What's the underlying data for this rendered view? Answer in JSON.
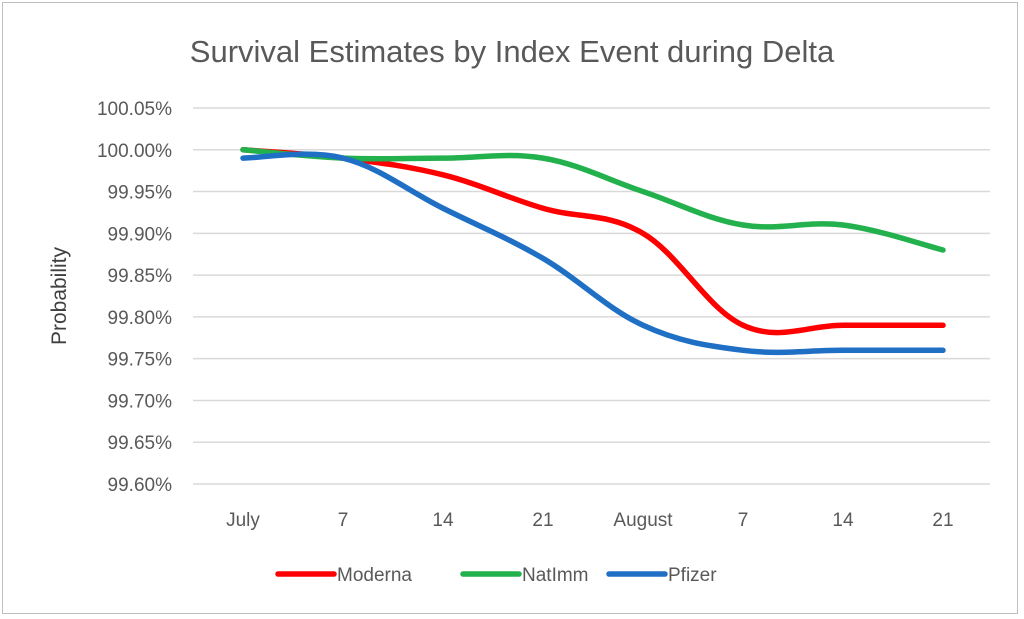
{
  "chart_data": {
    "type": "line",
    "title": "Survival Estimates by Index Event during Delta",
    "xlabel": "",
    "ylabel": "Probability",
    "categories": [
      "July",
      "7",
      "14",
      "21",
      "August",
      "7",
      "14",
      "21"
    ],
    "y_tick_labels": [
      "100.05%",
      "100.00%",
      "99.95%",
      "99.90%",
      "99.85%",
      "99.80%",
      "99.75%",
      "99.70%",
      "99.65%",
      "99.60%"
    ],
    "ylim": [
      99.6,
      100.05
    ],
    "grid": true,
    "legend_position": "bottom",
    "series": [
      {
        "name": "Moderna",
        "color": "#ff0000",
        "values": [
          100.0,
          99.99,
          99.97,
          99.93,
          99.9,
          99.79,
          99.79,
          99.79
        ]
      },
      {
        "name": "NatImm",
        "color": "#22b14c",
        "values": [
          100.0,
          99.99,
          99.99,
          99.99,
          99.95,
          99.91,
          99.91,
          99.88
        ]
      },
      {
        "name": "Pfizer",
        "color": "#1f6fc5",
        "values": [
          99.99,
          99.99,
          99.93,
          99.87,
          99.79,
          99.76,
          99.76,
          99.76
        ]
      }
    ]
  }
}
